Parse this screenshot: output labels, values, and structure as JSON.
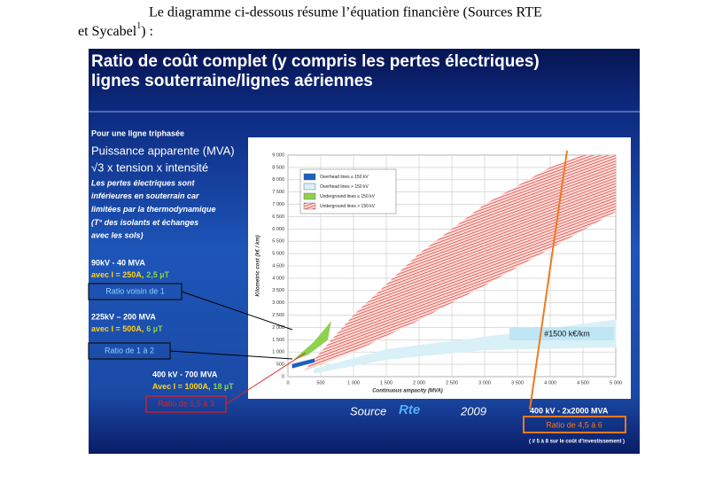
{
  "paragraph": {
    "line1": "Le diagramme ci-dessous résume l’équation financière (Sources RTE",
    "line2": "et Sycabel",
    "footnote_ref": "1",
    "line2_end": ") :"
  },
  "slide": {
    "title_line1": "Ratio de coût complet (y compris les pertes électriques)",
    "title_line2": "lignes souterraine/lignes aériennes",
    "intro": "Pour une ligne triphasée",
    "formula1": "Puissance apparente (MVA)",
    "formula2": "√3 x tension x intensité",
    "notes": [
      "Les pertes électriques sont",
      "inférieures en souterrain car",
      "limitées par la thermodynamique",
      "(T° des isolants et échanges",
      "avec les sols)"
    ],
    "cases": [
      {
        "head": "90kV - 40 MVA",
        "current": "avec I = 250A,",
        "field": "2,5 µT",
        "ratio": "Ratio voisin de 1"
      },
      {
        "head": "225kV – 200 MVA",
        "current": "avec I = 500A,",
        "field": "6 µT",
        "ratio": "Ratio de 1 à 2"
      },
      {
        "head": "400 kV - 700 MVA",
        "current": "Avec I = 1000A,",
        "field": "18 µT",
        "ratio": "Ratio de 1,5 à 3"
      }
    ],
    "source": "Source",
    "logo": "Rte",
    "year": "2009",
    "big_case": "400 kV - 2x2000 MVA",
    "big_ratio": "Ratio de 4,5 à 6",
    "big_note": "( # 5 à 8 sur le coût d’investissement )"
  },
  "chart_data": {
    "type": "polygon",
    "xlabel": "Continuous ampacity (MVA)",
    "ylabel": "Kilometric cost (k€ / km)",
    "xlim": [
      0,
      5000
    ],
    "ylim": [
      0,
      9000
    ],
    "xticks": [
      0,
      500,
      {
        "value": 1000,
        "label": "1 000"
      },
      {
        "value": 1500,
        "label": "1 500"
      },
      {
        "value": 2000,
        "label": "2 000"
      },
      {
        "value": 2500,
        "label": "2 500"
      },
      {
        "value": 3000,
        "label": "3 000"
      },
      {
        "value": 3500,
        "label": "3 500"
      },
      {
        "value": 4000,
        "label": "4 000"
      },
      {
        "value": 4500,
        "label": "4 500"
      },
      {
        "value": 5000,
        "label": "5 000"
      }
    ],
    "yticks": [
      0,
      500,
      {
        "value": 1000,
        "label": "1 000"
      },
      {
        "value": 1500,
        "label": "1 500"
      },
      {
        "value": 2000,
        "label": "2 000"
      },
      {
        "value": 2500,
        "label": "2 500"
      },
      {
        "value": 3000,
        "label": "3 000"
      },
      {
        "value": 3500,
        "label": "3 500"
      },
      {
        "value": 4000,
        "label": "4 000"
      },
      {
        "value": 4500,
        "label": "4 500"
      },
      {
        "value": 5000,
        "label": "5 000"
      },
      {
        "value": 5500,
        "label": "5 500"
      },
      {
        "value": 6000,
        "label": "6 000"
      },
      {
        "value": 6500,
        "label": "6 500"
      },
      {
        "value": 7000,
        "label": "7 000"
      },
      {
        "value": 7500,
        "label": "7 500"
      },
      {
        "value": 8000,
        "label": "8 000"
      },
      {
        "value": 8500,
        "label": "8 500"
      },
      {
        "value": 9000,
        "label": "9 000"
      }
    ],
    "grid": true,
    "series": [
      {
        "name": "Underground lines > 150 kV",
        "color": "#e8413c",
        "hatch": true,
        "x": [
          250,
          1000,
          2000,
          3000,
          4000,
          4500,
          5000,
          5000,
          4000,
          3000,
          2000,
          1000,
          300
        ],
        "y": [
          250,
          2500,
          5000,
          7000,
          8500,
          9000,
          9000,
          6700,
          5200,
          3700,
          2300,
          1000,
          300
        ]
      },
      {
        "name": "Overhead lines > 150 kV",
        "color": "#d9f0f7",
        "hatch": false,
        "x": [
          400,
          1500,
          3000,
          5000,
          5000,
          3000,
          1500,
          400
        ],
        "y": [
          150,
          700,
          1100,
          1200,
          2300,
          1600,
          1100,
          300
        ]
      },
      {
        "name": "Underground lines ≤ 150 kV",
        "color": "#8fd14f",
        "hatch": false,
        "x": [
          100,
          400,
          650,
          600,
          300
        ],
        "y": [
          700,
          1400,
          2200,
          1500,
          900
        ]
      },
      {
        "name": "Overhead lines ≤ 150 kV",
        "color": "#1f5fbf",
        "hatch": false,
        "x": [
          70,
          400,
          400,
          70
        ],
        "y": [
          360,
          600,
          720,
          500
        ]
      }
    ],
    "legend_order": [
      3,
      1,
      2,
      0
    ],
    "annotation": "#1500 k€/km"
  }
}
